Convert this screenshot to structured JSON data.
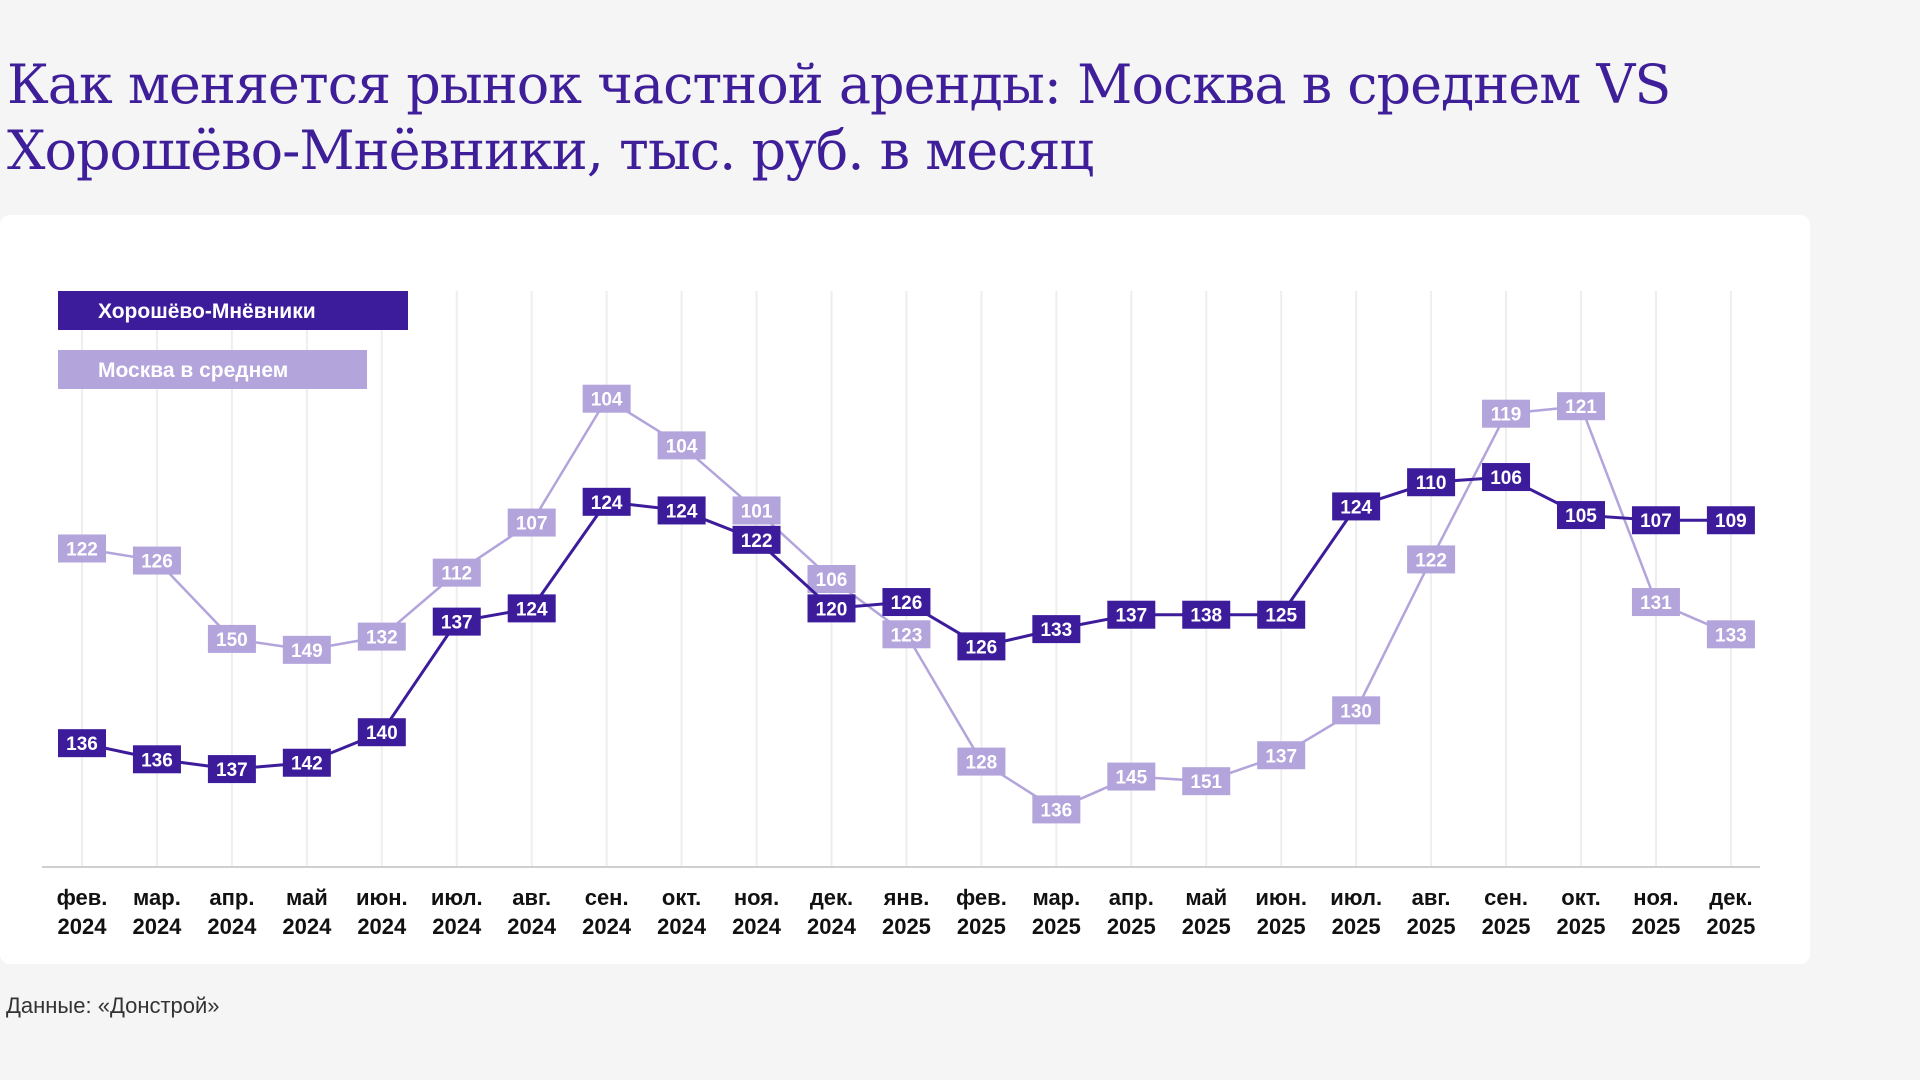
{
  "title": "Как меняется рынок частной аренды: Москва в среднем VS Хорошёво-Мнёвники, тыс. руб. в месяц",
  "source": "Данные: «Донстрой»",
  "colors": {
    "dark": "#3d1c9c",
    "light": "#b3a4dc",
    "title": "#3f1f99",
    "grid": "#eeeeee"
  },
  "chart_data": {
    "type": "line",
    "title": "Как меняется рынок частной аренды: Москва в среднем VS Хорошёво-Мнёвники, тыс. руб. в месяц",
    "xlabel": "",
    "ylabel": "",
    "ylim": [
      0,
      100
    ],
    "grid": "vertical",
    "legend_placement": "top-left",
    "categories": [
      [
        "фев.",
        "2024"
      ],
      [
        "мар.",
        "2024"
      ],
      [
        "апр.",
        "2024"
      ],
      [
        "май",
        "2024"
      ],
      [
        "июн.",
        "2024"
      ],
      [
        "июл.",
        "2024"
      ],
      [
        "авг.",
        "2024"
      ],
      [
        "сен.",
        "2024"
      ],
      [
        "окт.",
        "2024"
      ],
      [
        "ноя.",
        "2024"
      ],
      [
        "дек.",
        "2024"
      ],
      [
        "янв.",
        "2025"
      ],
      [
        "фев.",
        "2025"
      ],
      [
        "мар.",
        "2025"
      ],
      [
        "апр.",
        "2025"
      ],
      [
        "май",
        "2025"
      ],
      [
        "июн.",
        "2025"
      ],
      [
        "июл.",
        "2025"
      ],
      [
        "авг.",
        "2025"
      ],
      [
        "сен.",
        "2025"
      ],
      [
        "окт.",
        "2025"
      ],
      [
        "ноя.",
        "2025"
      ],
      [
        "дек.",
        "2025"
      ]
    ],
    "series": [
      {
        "name": "Хорошёво-Мнёвники",
        "color": "#3d1c9c",
        "labels": [
          136,
          136,
          137,
          142,
          140,
          137,
          124,
          124,
          124,
          122,
          120,
          126,
          126,
          133,
          137,
          138,
          125,
          124,
          110,
          106,
          105,
          107,
          109
        ],
        "plot_index": [
          21.5,
          18.7,
          17.0,
          18.1,
          23.4,
          42.6,
          44.9,
          63.4,
          61.9,
          56.8,
          44.9,
          46.0,
          38.3,
          41.3,
          43.8,
          43.8,
          43.8,
          62.6,
          66.8,
          67.7,
          61.1,
          60.2,
          60.2
        ]
      },
      {
        "name": "Москва в среднем",
        "color": "#b3a4dc",
        "labels": [
          122,
          126,
          150,
          149,
          132,
          112,
          107,
          104,
          104,
          101,
          106,
          123,
          128,
          136,
          145,
          151,
          137,
          130,
          122,
          119,
          121,
          131,
          133
        ],
        "plot_index": [
          55.3,
          53.2,
          39.6,
          37.7,
          40.0,
          51.1,
          59.8,
          81.3,
          73.2,
          61.9,
          50.0,
          40.4,
          18.3,
          10.0,
          15.7,
          14.9,
          19.4,
          27.2,
          53.4,
          78.7,
          80.0,
          46.0,
          40.4
        ]
      }
    ]
  }
}
